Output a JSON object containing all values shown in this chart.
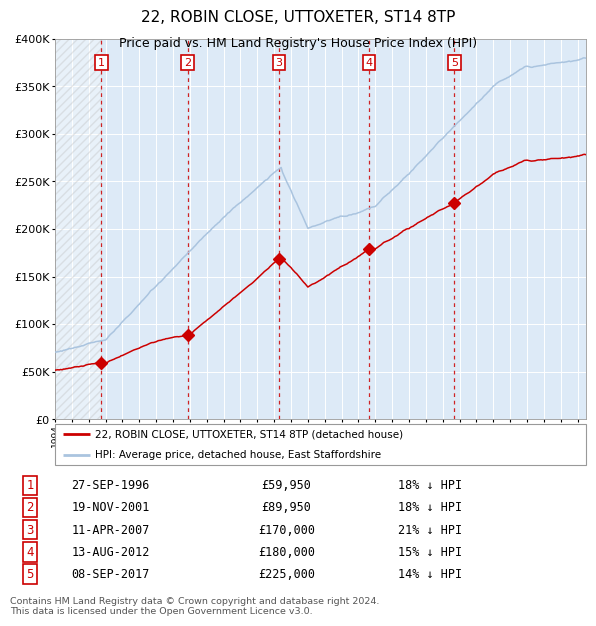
{
  "title": "22, ROBIN CLOSE, UTTOXETER, ST14 8TP",
  "subtitle": "Price paid vs. HM Land Registry's House Price Index (HPI)",
  "title_fontsize": 11,
  "subtitle_fontsize": 9,
  "ytick_vals": [
    0,
    50000,
    100000,
    150000,
    200000,
    250000,
    300000,
    350000,
    400000
  ],
  "ylim": [
    0,
    400000
  ],
  "xlim_start": 1994.0,
  "xlim_end": 2025.5,
  "purchases": [
    {
      "label": "1",
      "date_str": "27-SEP-1996",
      "date_num": 1996.75,
      "price": 59950,
      "pct": "18%",
      "direction": "↓"
    },
    {
      "label": "2",
      "date_str": "19-NOV-2001",
      "date_num": 2001.88,
      "price": 89950,
      "pct": "18%",
      "direction": "↓"
    },
    {
      "label": "3",
      "date_str": "11-APR-2007",
      "date_num": 2007.28,
      "price": 170000,
      "pct": "21%",
      "direction": "↓"
    },
    {
      "label": "4",
      "date_str": "13-AUG-2012",
      "date_num": 2012.62,
      "price": 180000,
      "pct": "15%",
      "direction": "↓"
    },
    {
      "label": "5",
      "date_str": "08-SEP-2017",
      "date_num": 2017.69,
      "price": 225000,
      "pct": "14%",
      "direction": "↓"
    }
  ],
  "hpi_color": "#aac4df",
  "price_color": "#cc0000",
  "marker_color": "#cc0000",
  "dashed_line_color": "#cc0000",
  "plot_bg": "#ddeaf7",
  "legend_label_price": "22, ROBIN CLOSE, UTTOXETER, ST14 8TP (detached house)",
  "legend_label_hpi": "HPI: Average price, detached house, East Staffordshire",
  "footer": "Contains HM Land Registry data © Crown copyright and database right 2024.\nThis data is licensed under the Open Government Licence v3.0."
}
